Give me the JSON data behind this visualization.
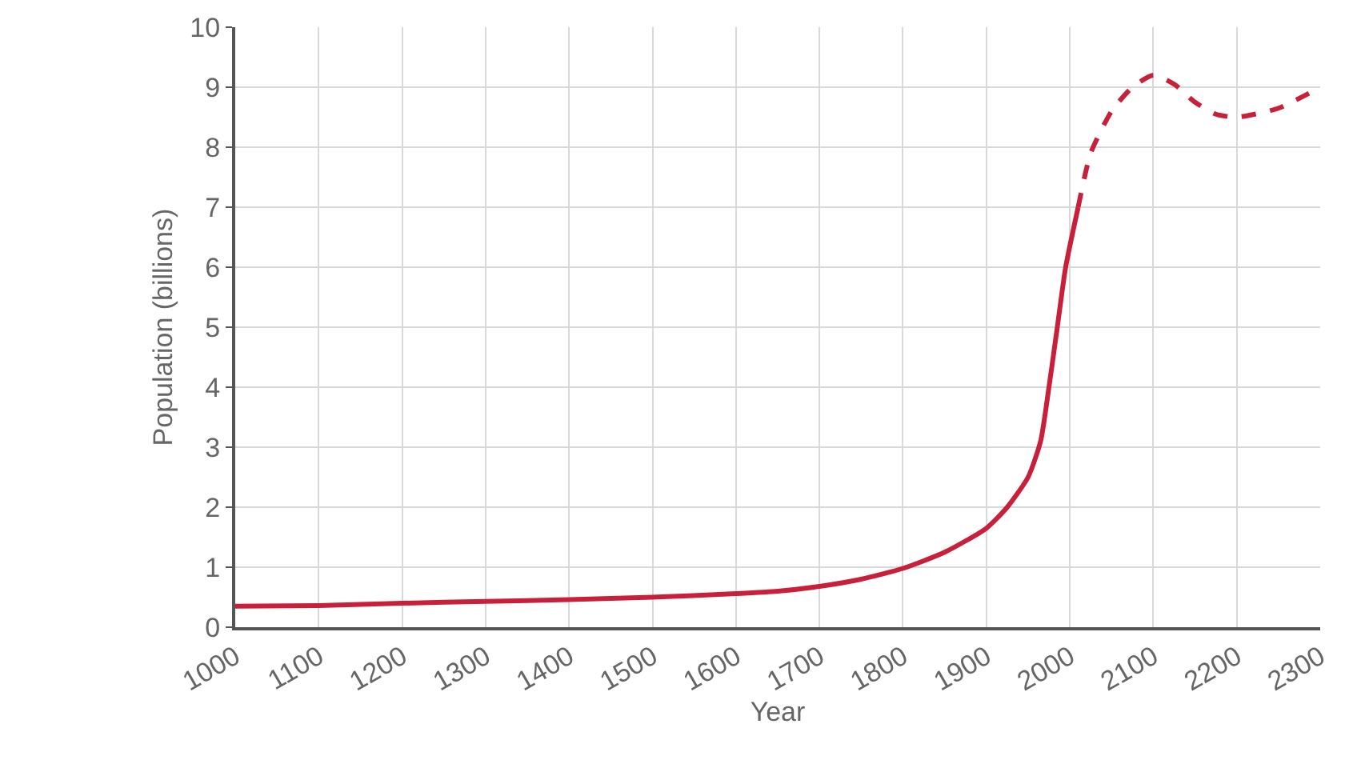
{
  "chart_data": {
    "type": "line",
    "xlabel": "Year",
    "ylabel": "Population (billions)",
    "xlim": [
      1000,
      2300
    ],
    "xticks": [
      1000,
      1100,
      1200,
      1300,
      1400,
      1500,
      1600,
      1700,
      1800,
      1900,
      2000,
      2100,
      2200,
      2300
    ],
    "ylim": [
      0,
      10
    ],
    "yticks": [
      0,
      1,
      2,
      3,
      4,
      5,
      6,
      7,
      8,
      9,
      10
    ],
    "grid": true,
    "marker": "none",
    "series": [
      {
        "color": "#c8203a",
        "line_style": "solid",
        "x": [
          1000,
          1100,
          1200,
          1300,
          1400,
          1500,
          1600,
          1650,
          1700,
          1750,
          1800,
          1850,
          1900,
          1925,
          1950,
          1965,
          1975,
          1985,
          1995,
          2010
        ],
        "values": [
          0.35,
          0.36,
          0.4,
          0.43,
          0.46,
          0.5,
          0.56,
          0.6,
          0.68,
          0.8,
          0.98,
          1.25,
          1.65,
          2.0,
          2.5,
          3.1,
          4.0,
          5.0,
          6.0,
          7.0
        ]
      },
      {
        "color": "#c8203a",
        "line_style": "dashed",
        "x": [
          2010,
          2025,
          2050,
          2075,
          2100,
          2125,
          2150,
          2175,
          2200,
          2250,
          2300
        ],
        "values": [
          7.0,
          7.9,
          8.6,
          9.0,
          9.2,
          9.05,
          8.75,
          8.55,
          8.5,
          8.65,
          9.0
        ]
      }
    ]
  }
}
